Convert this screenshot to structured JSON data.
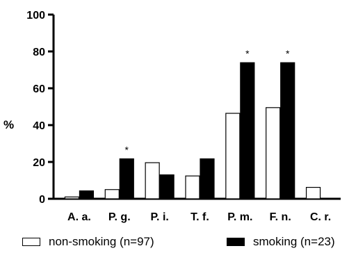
{
  "chart_data": {
    "type": "bar",
    "title": "",
    "xlabel": "",
    "ylabel": "%",
    "ylim": [
      0,
      100
    ],
    "yticks": [
      0,
      20,
      40,
      60,
      80,
      100
    ],
    "grid": false,
    "legend_position": "bottom",
    "categories": [
      "A. a.",
      "P. g.",
      "P. i.",
      "T. f.",
      "P. m.",
      "F. n.",
      "C. r."
    ],
    "series": [
      {
        "name": "non-smoking (n=97)",
        "fill": "#ffffff",
        "values": [
          1,
          5,
          19.6,
          12.4,
          46.4,
          49.5,
          6.2
        ]
      },
      {
        "name": "smoking (n=23)",
        "fill": "#000000",
        "values": [
          4.3,
          21.7,
          13,
          21.7,
          73.9,
          73.9,
          0
        ]
      }
    ],
    "annotations": [
      {
        "category": "P. g.",
        "series": "smoking (n=23)",
        "text": "*"
      },
      {
        "category": "P. m.",
        "series": "smoking (n=23)",
        "text": "*"
      },
      {
        "category": "F. n.",
        "series": "smoking (n=23)",
        "text": "*"
      }
    ]
  }
}
